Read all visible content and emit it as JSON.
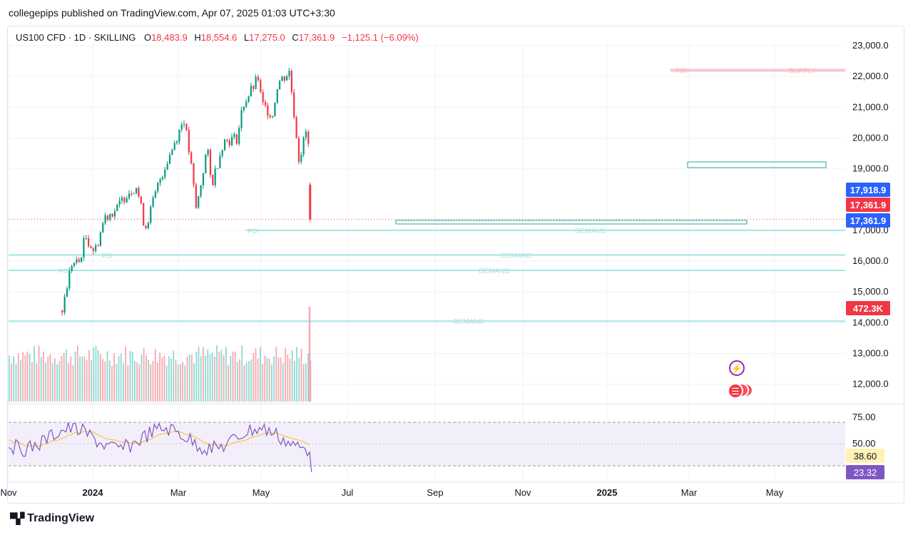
{
  "header": {
    "published_by": "collegepips published on TradingView.com, Apr 07, 2025 01:03 UTC+3:30"
  },
  "legend": {
    "symbol": "US100 CFD · 1D · SKILLING",
    "o_label": "O",
    "o_value": "18,483.9",
    "h_label": "H",
    "h_value": "18,554.6",
    "l_label": "L",
    "l_value": "17,275.0",
    "c_label": "C",
    "c_value": "17,361.9",
    "change": "−1,125.1 (−6.09%)"
  },
  "chart_data": {
    "type": "candlestick",
    "price_axis": {
      "ticks": [
        "23,000.0",
        "22,000.0",
        "21,000.0",
        "20,000.0",
        "19,000.0",
        "17,000.0",
        "16,000.0",
        "15,000.0",
        "14,000.0",
        "13,000.0",
        "12,000.0"
      ],
      "range": [
        11500,
        23200
      ]
    },
    "time_axis": {
      "ticks": [
        "Nov",
        "2024",
        "Mar",
        "May",
        "Jul",
        "Sep",
        "Nov",
        "2025",
        "Mar",
        "May"
      ],
      "bold_ticks": [
        "2024",
        "2025"
      ]
    },
    "price_tags": [
      {
        "value": "17,918.9",
        "color": "#2962ff"
      },
      {
        "value": "17,361.9",
        "color": "#f23645"
      },
      {
        "value": "17,361.9",
        "color": "#2962ff"
      },
      {
        "value": "472.3K",
        "color": "#f23645"
      }
    ],
    "close_path": [
      [
        "2023-10-27",
        14400
      ],
      [
        "2023-11-15",
        15900
      ],
      [
        "2023-12-01",
        15950
      ],
      [
        "2023-12-15",
        16800
      ],
      [
        "2024-01-04",
        16300
      ],
      [
        "2024-01-25",
        17450
      ],
      [
        "2024-02-20",
        17700
      ],
      [
        "2024-03-10",
        18200
      ],
      [
        "2024-04-01",
        18450
      ],
      [
        "2024-04-19",
        17050
      ],
      [
        "2024-05-20",
        18650
      ],
      [
        "2024-06-20",
        19850
      ],
      [
        "2024-07-10",
        20650
      ],
      [
        "2024-07-25",
        19100
      ],
      [
        "2024-08-05",
        17650
      ],
      [
        "2024-08-28",
        19700
      ],
      [
        "2024-09-06",
        18450
      ],
      [
        "2024-10-01",
        19900
      ],
      [
        "2024-10-31",
        20000
      ],
      [
        "2024-11-11",
        21050
      ],
      [
        "2024-12-16",
        22000
      ],
      [
        "2024-12-20",
        21100
      ],
      [
        "2025-01-13",
        20750
      ],
      [
        "2025-01-24",
        21800
      ],
      [
        "2025-02-18",
        22150
      ],
      [
        "2025-03-10",
        19300
      ],
      [
        "2025-03-25",
        20200
      ],
      [
        "2025-04-01",
        19500
      ],
      [
        "2025-04-04",
        17361.9
      ]
    ],
    "last_ohlc": {
      "open": 18483.9,
      "high": 18554.6,
      "low": 17275.0,
      "close": 17361.9
    },
    "zones": [
      {
        "label": "SUPPLY",
        "price": 22200,
        "color": "#f7c7cc"
      },
      {
        "label": "DEMAND",
        "price": 17000,
        "color": "#a3e6e6"
      },
      {
        "label": "DEMAND",
        "price": 16200,
        "color": "#a3e6e6"
      },
      {
        "label": "DEMAND",
        "price": 15700,
        "color": "#a3e6e6"
      },
      {
        "label": "DEMAND",
        "price": 14050,
        "color": "#a3e6e6"
      }
    ],
    "poi_labels": [
      "POI",
      "POI",
      "POI",
      "POI"
    ],
    "volume": {
      "last": "472.3K"
    },
    "rsi": {
      "ticks": [
        "75.00",
        "50.00"
      ],
      "rsi_value": "23.32",
      "ma_value": "38.60",
      "rsi_color": "#7e57c2",
      "ma_color": "#f5c542"
    },
    "colors": {
      "up": "#089981",
      "down": "#f23645",
      "up_vol": "#8fd9d2",
      "down_vol": "#f7a9ad"
    }
  },
  "footer": {
    "brand": "TradingView"
  }
}
